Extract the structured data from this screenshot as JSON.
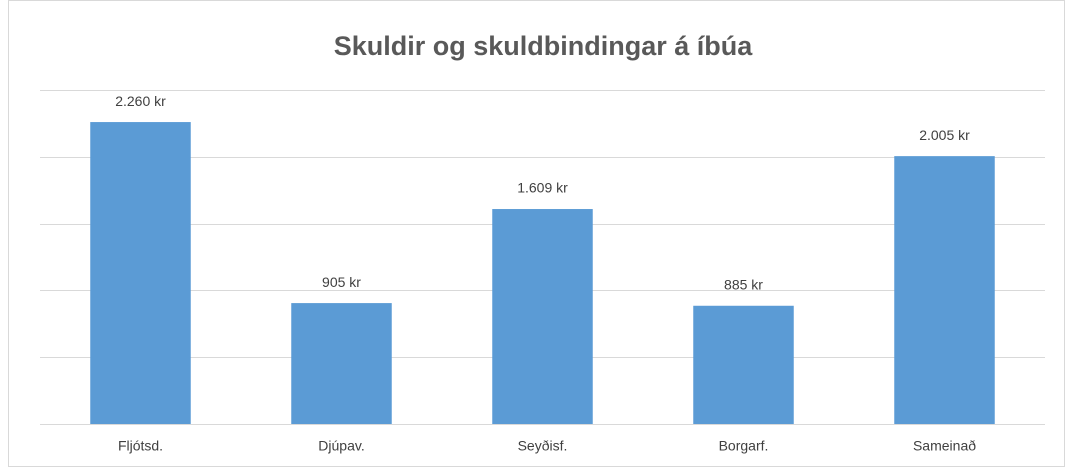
{
  "chart_data": {
    "type": "bar",
    "title": "Skuldir og skuldbindingar á íbúa",
    "categories": [
      "Fljótsd.",
      "Djúpav.",
      "Seyðisf.",
      "Borgarf.",
      "Sameinað"
    ],
    "values": [
      2260,
      905,
      1609,
      885,
      2005
    ],
    "value_labels": [
      "2.260 kr",
      "905 kr",
      "1.609 kr",
      "885 kr",
      "2.005 kr"
    ],
    "color": "#5b9bd5",
    "ylim": [
      0,
      2500
    ],
    "yticks": [
      0,
      500,
      1000,
      1500,
      2000,
      2500
    ],
    "grid": true
  }
}
